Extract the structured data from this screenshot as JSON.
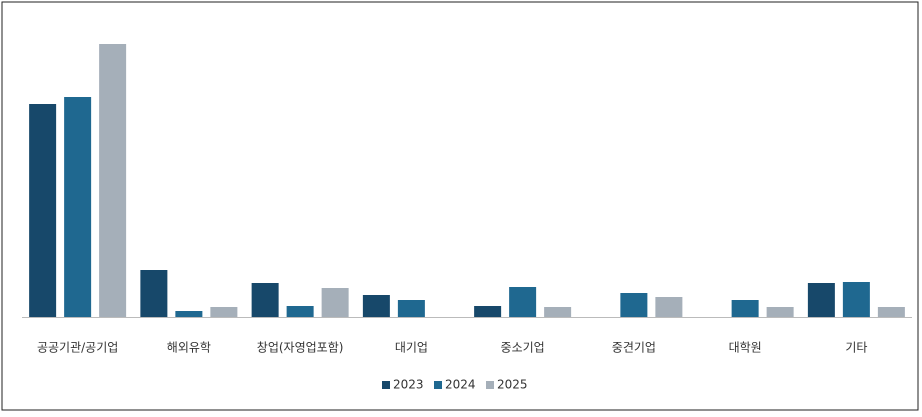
{
  "chart_data": {
    "type": "bar",
    "categories": [
      "공공기관/공기업",
      "해외유학",
      "창업(자영업포함)",
      "대기업",
      "중소기업",
      "중견기업",
      "대학원",
      "기타"
    ],
    "series": [
      {
        "name": "2023",
        "color": "#17486a",
        "values": [
          213,
          47,
          34,
          22,
          11,
          0,
          0,
          34
        ]
      },
      {
        "name": "2024",
        "color": "#1f6890",
        "values": [
          220,
          6,
          11,
          17,
          30,
          24,
          17,
          35
        ]
      },
      {
        "name": "2025",
        "color": "#a5afb9",
        "values": [
          273,
          10,
          29,
          0,
          10,
          20,
          10,
          10
        ]
      }
    ],
    "ylim": [
      0,
      290
    ],
    "legend": "bottom"
  }
}
